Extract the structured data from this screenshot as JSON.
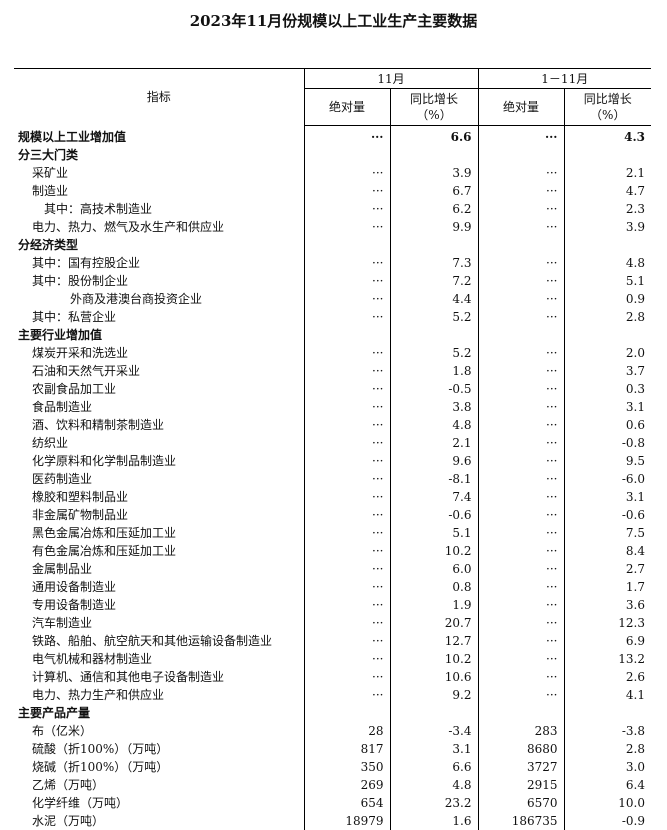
{
  "title": "2023年11月份规模以上工业生产主要数据",
  "header": {
    "indicator": "指标",
    "period1": "11月",
    "period2": "1－11月",
    "absolute": "绝对量",
    "growth_line1": "同比增长",
    "growth_line2": "（%）"
  },
  "rows": [
    {
      "label": "规模以上工业增加值",
      "level": 0,
      "bold": true,
      "v": [
        "···",
        "6.6",
        "···",
        "4.3"
      ]
    },
    {
      "label": "分三大门类",
      "level": 0,
      "bold": true,
      "v": [
        "",
        "",
        "",
        ""
      ]
    },
    {
      "label": "采矿业",
      "level": 1,
      "v": [
        "···",
        "3.9",
        "···",
        "2.1"
      ]
    },
    {
      "label": "制造业",
      "level": 1,
      "v": [
        "···",
        "6.7",
        "···",
        "4.7"
      ]
    },
    {
      "label": "其中：高技术制造业",
      "level": 2,
      "v": [
        "···",
        "6.2",
        "···",
        "2.3"
      ]
    },
    {
      "label": "电力、热力、燃气及水生产和供应业",
      "level": 1,
      "v": [
        "···",
        "9.9",
        "···",
        "3.9"
      ]
    },
    {
      "label": "分经济类型",
      "level": 0,
      "bold": true,
      "v": [
        "",
        "",
        "",
        ""
      ]
    },
    {
      "label": "其中：国有控股企业",
      "level": 1,
      "v": [
        "···",
        "7.3",
        "···",
        "4.8"
      ]
    },
    {
      "label": "其中：股份制企业",
      "level": 1,
      "v": [
        "···",
        "7.2",
        "···",
        "5.1"
      ]
    },
    {
      "label": "外商及港澳台商投资企业",
      "level": 3,
      "v": [
        "···",
        "4.4",
        "···",
        "0.9"
      ]
    },
    {
      "label": "其中：私营企业",
      "level": 1,
      "v": [
        "···",
        "5.2",
        "···",
        "2.8"
      ]
    },
    {
      "label": "主要行业增加值",
      "level": 0,
      "bold": true,
      "v": [
        "",
        "",
        "",
        ""
      ]
    },
    {
      "label": "煤炭开采和洗选业",
      "level": 1,
      "v": [
        "···",
        "5.2",
        "···",
        "2.0"
      ]
    },
    {
      "label": "石油和天然气开采业",
      "level": 1,
      "v": [
        "···",
        "1.8",
        "···",
        "3.7"
      ]
    },
    {
      "label": "农副食品加工业",
      "level": 1,
      "v": [
        "···",
        "-0.5",
        "···",
        "0.3"
      ]
    },
    {
      "label": "食品制造业",
      "level": 1,
      "v": [
        "···",
        "3.8",
        "···",
        "3.1"
      ]
    },
    {
      "label": "酒、饮料和精制茶制造业",
      "level": 1,
      "v": [
        "···",
        "4.8",
        "···",
        "0.6"
      ]
    },
    {
      "label": "纺织业",
      "level": 1,
      "v": [
        "···",
        "2.1",
        "···",
        "-0.8"
      ]
    },
    {
      "label": "化学原料和化学制品制造业",
      "level": 1,
      "v": [
        "···",
        "9.6",
        "···",
        "9.5"
      ]
    },
    {
      "label": "医药制造业",
      "level": 1,
      "v": [
        "···",
        "-8.1",
        "···",
        "-6.0"
      ]
    },
    {
      "label": "橡胶和塑料制品业",
      "level": 1,
      "v": [
        "···",
        "7.4",
        "···",
        "3.1"
      ]
    },
    {
      "label": "非金属矿物制品业",
      "level": 1,
      "v": [
        "···",
        "-0.6",
        "···",
        "-0.6"
      ]
    },
    {
      "label": "黑色金属冶炼和压延加工业",
      "level": 1,
      "v": [
        "···",
        "5.1",
        "···",
        "7.5"
      ]
    },
    {
      "label": "有色金属冶炼和压延加工业",
      "level": 1,
      "v": [
        "···",
        "10.2",
        "···",
        "8.4"
      ]
    },
    {
      "label": "金属制品业",
      "level": 1,
      "v": [
        "···",
        "6.0",
        "···",
        "2.7"
      ]
    },
    {
      "label": "通用设备制造业",
      "level": 1,
      "v": [
        "···",
        "0.8",
        "···",
        "1.7"
      ]
    },
    {
      "label": "专用设备制造业",
      "level": 1,
      "v": [
        "···",
        "1.9",
        "···",
        "3.6"
      ]
    },
    {
      "label": "汽车制造业",
      "level": 1,
      "v": [
        "···",
        "20.7",
        "···",
        "12.3"
      ]
    },
    {
      "label": "铁路、船舶、航空航天和其他运输设备制造业",
      "level": 1,
      "v": [
        "···",
        "12.7",
        "···",
        "6.9"
      ]
    },
    {
      "label": "电气机械和器材制造业",
      "level": 1,
      "v": [
        "···",
        "10.2",
        "···",
        "13.2"
      ]
    },
    {
      "label": "计算机、通信和其他电子设备制造业",
      "level": 1,
      "v": [
        "···",
        "10.6",
        "···",
        "2.6"
      ]
    },
    {
      "label": "电力、热力生产和供应业",
      "level": 1,
      "v": [
        "···",
        "9.2",
        "···",
        "4.1"
      ]
    },
    {
      "label": "主要产品产量",
      "level": 0,
      "bold": true,
      "v": [
        "",
        "",
        "",
        ""
      ]
    },
    {
      "label": "布（亿米）",
      "level": 1,
      "v": [
        "28",
        "-3.4",
        "283",
        "-3.8"
      ]
    },
    {
      "label": "硫酸（折100%）（万吨）",
      "level": 1,
      "v": [
        "817",
        "3.1",
        "8680",
        "2.8"
      ]
    },
    {
      "label": "烧碱（折100%）（万吨）",
      "level": 1,
      "v": [
        "350",
        "6.6",
        "3727",
        "3.0"
      ]
    },
    {
      "label": "乙烯（万吨）",
      "level": 1,
      "v": [
        "269",
        "4.8",
        "2915",
        "6.4"
      ]
    },
    {
      "label": "化学纤维（万吨）",
      "level": 1,
      "v": [
        "654",
        "23.2",
        "6570",
        "10.0"
      ]
    },
    {
      "label": "水泥（万吨）",
      "level": 1,
      "v": [
        "18979",
        "1.6",
        "186735",
        "-0.9"
      ]
    }
  ]
}
